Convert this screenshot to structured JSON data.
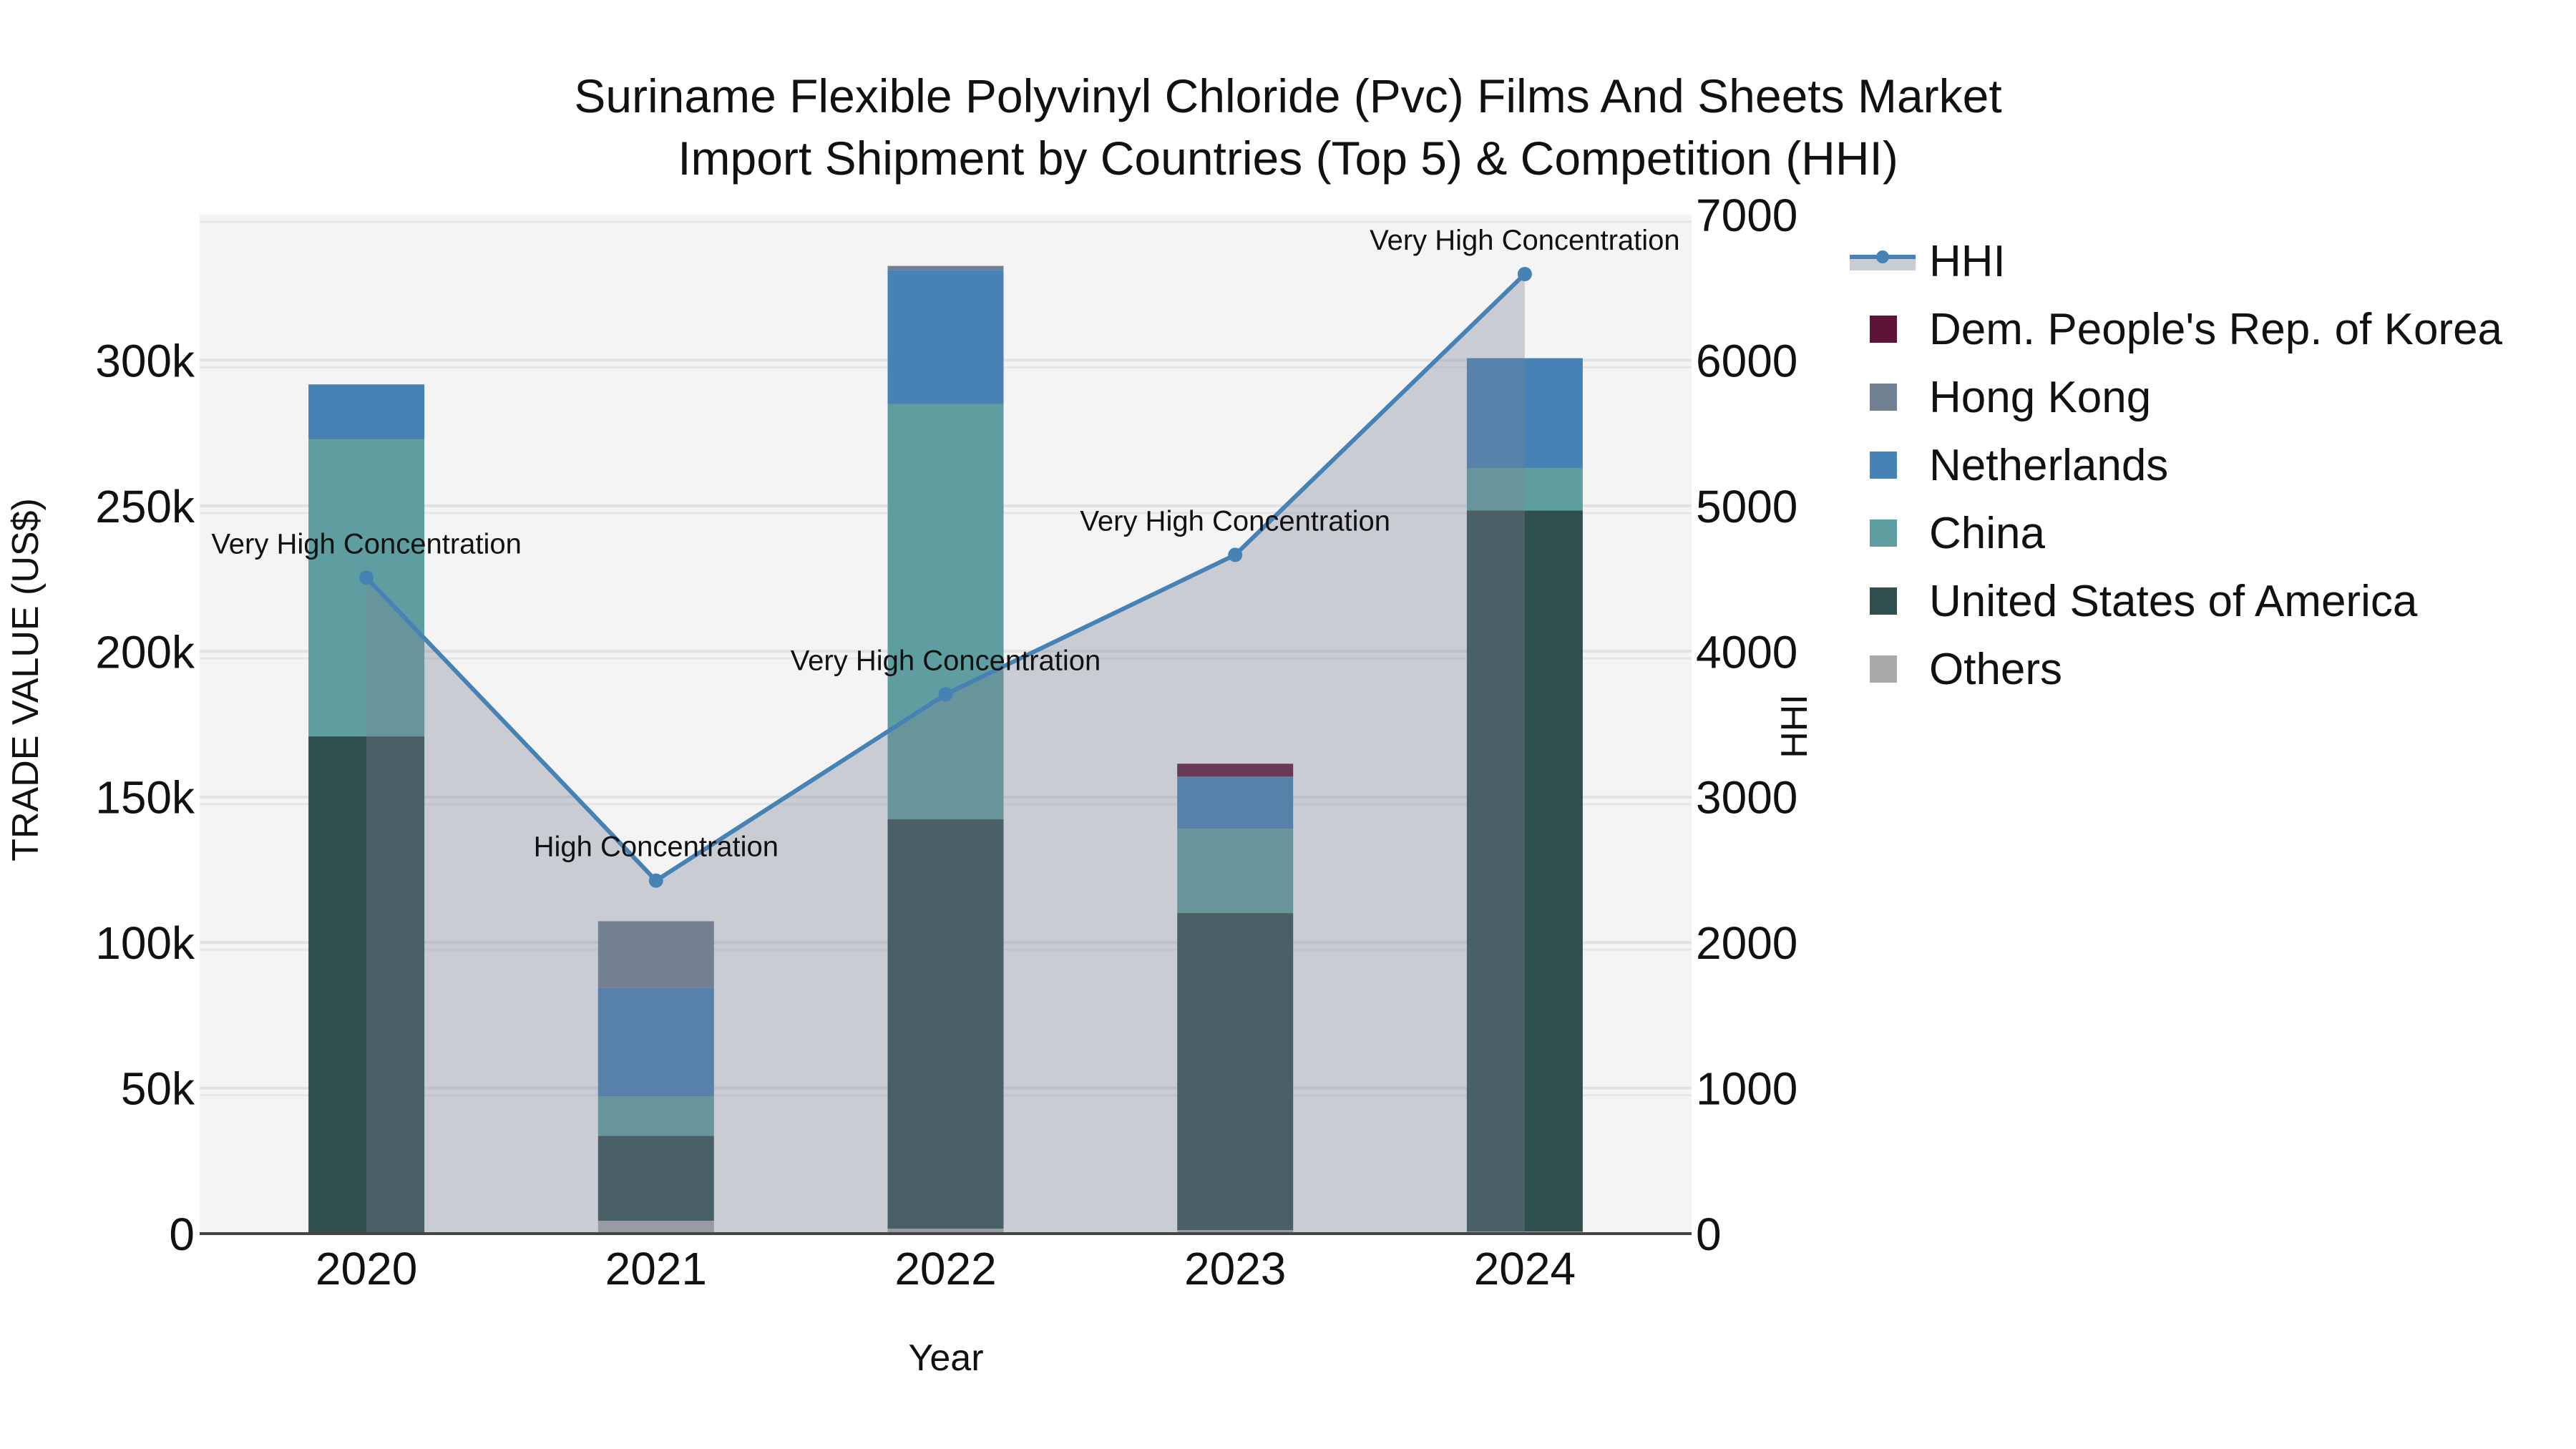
{
  "title": {
    "line1": "Suriname Flexible Polyvinyl Chloride (Pvc) Films And Sheets Market",
    "line2": "Import Shipment by Countries (Top 5) & Competition (HHI)"
  },
  "axes": {
    "x_title": "Year",
    "y_title": "TRADE VALUE (US$)",
    "y2_title": "HHI",
    "y_ticks": [
      "0",
      "50k",
      "100k",
      "150k",
      "200k",
      "250k",
      "300k"
    ],
    "y2_ticks": [
      "0",
      "1000",
      "2000",
      "3000",
      "4000",
      "5000",
      "6000",
      "7000"
    ]
  },
  "legend": {
    "items": [
      {
        "label": "HHI",
        "type": "line",
        "color": "#4682b4"
      },
      {
        "label": "Dem. People's Rep. of Korea",
        "type": "bar",
        "color": "#5e1436"
      },
      {
        "label": "Hong Kong",
        "type": "bar",
        "color": "#708090"
      },
      {
        "label": "Netherlands",
        "type": "bar",
        "color": "#4682b4"
      },
      {
        "label": "China",
        "type": "bar",
        "color": "#5f9ea0"
      },
      {
        "label": "United States of America",
        "type": "bar",
        "color": "#2f4f4f"
      },
      {
        "label": "Others",
        "type": "bar",
        "color": "#a9a9a9"
      }
    ]
  },
  "chart_data": {
    "type": "bar",
    "title": "Suriname Flexible Polyvinyl Chloride (Pvc) Films And Sheets Market Import Shipment by Countries (Top 5) & Competition (HHI)",
    "xlabel": "Year",
    "ylabel": "TRADE VALUE (US$)",
    "y2label": "HHI",
    "categories": [
      "2020",
      "2021",
      "2022",
      "2023",
      "2024"
    ],
    "stacked": true,
    "ylim": [
      0,
      350000
    ],
    "y2lim": [
      0,
      7000
    ],
    "grid": true,
    "legend_position": "right",
    "series": [
      {
        "name": "Others",
        "color": "#a9a9a9",
        "values": [
          300,
          4400,
          1700,
          1200,
          700
        ]
      },
      {
        "name": "United States of America",
        "color": "#2f4f4f",
        "values": [
          170500,
          29200,
          140600,
          108900,
          247700
        ]
      },
      {
        "name": "China",
        "color": "#5f9ea0",
        "values": [
          102000,
          13500,
          142700,
          29000,
          14500
        ]
      },
      {
        "name": "Netherlands",
        "color": "#4682b4",
        "values": [
          18900,
          37300,
          46000,
          17900,
          37800
        ]
      },
      {
        "name": "Hong Kong",
        "color": "#708090",
        "values": [
          0,
          22900,
          1400,
          0,
          0
        ]
      },
      {
        "name": "Dem. People's Rep. of Korea",
        "color": "#5e1436",
        "values": [
          0,
          0,
          0,
          4400,
          0
        ]
      }
    ],
    "line_series": {
      "name": "HHI",
      "axis": "right",
      "type": "line",
      "fill": "tozeroy",
      "color": "#4682b4",
      "values": [
        4506,
        2425,
        3705,
        4663,
        6592
      ],
      "annotations": [
        "Very High Concentration",
        "High Concentration",
        "Very High Concentration",
        "Very High Concentration",
        "Very High Concentration"
      ]
    }
  }
}
